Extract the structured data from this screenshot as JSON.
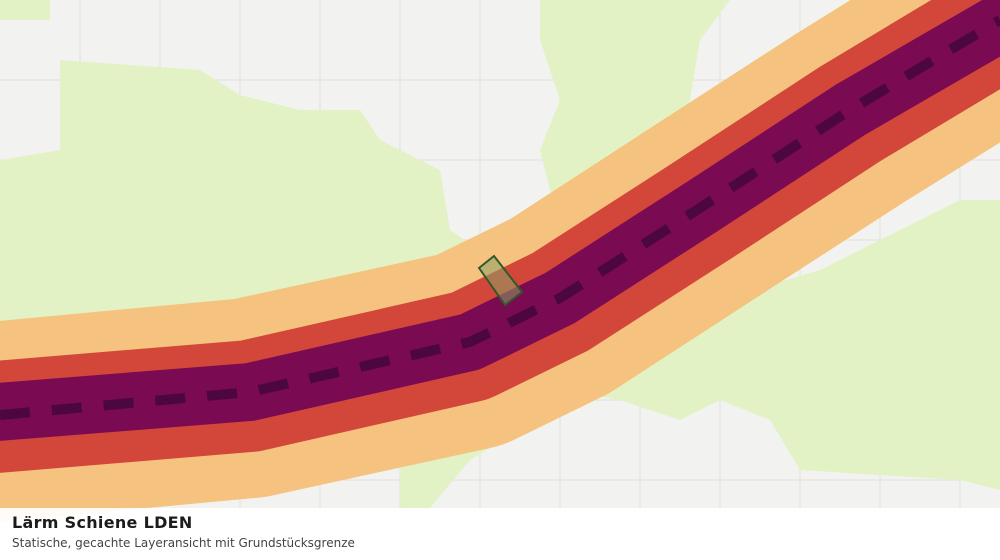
{
  "caption": {
    "title": "Lärm Schiene LDEN",
    "subtitle": "Statische, gecachte Layeransicht mit Grundstücksgrenze"
  }
}
